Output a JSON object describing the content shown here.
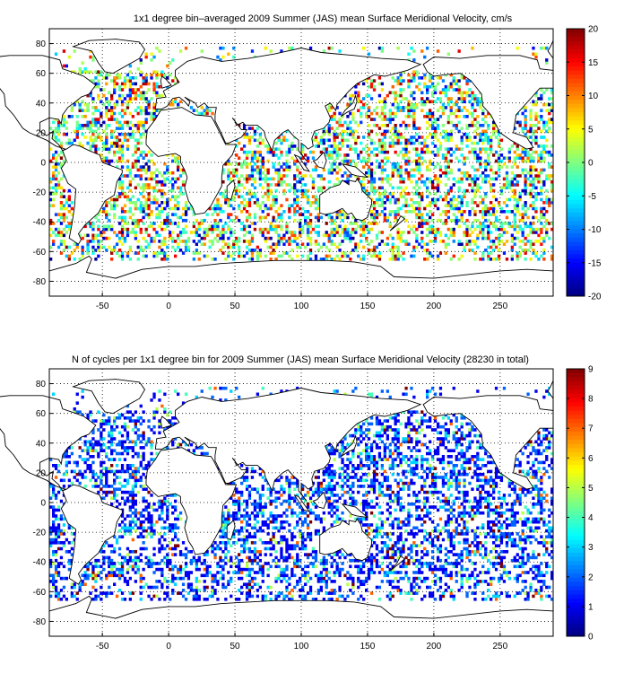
{
  "chart_data": [
    {
      "type": "heatmap",
      "title": "1x1 degree bin–averaged 2009 Summer (JAS) mean Surface Meridional Velocity, cm/s",
      "xlim": [
        -90,
        290
      ],
      "ylim": [
        -90,
        90
      ],
      "x_ticks": [
        "-50",
        "0",
        "50",
        "100",
        "150",
        "200",
        "250"
      ],
      "y_ticks": [
        "80",
        "60",
        "40",
        "20",
        "0",
        "-20",
        "-40",
        "-60",
        "-80"
      ],
      "grid": true,
      "colorbar": {
        "range": [
          -20,
          20
        ],
        "colormap": "jet",
        "ticks": [
          "20",
          "15",
          "10",
          "5",
          "0",
          "-5",
          "-10",
          "-15",
          "-20"
        ]
      },
      "pixel_value_distribution": {
        "green": 0.55,
        "cyan": 0.12,
        "yellow": 0.12,
        "red": 0.07,
        "blue": 0.06,
        "dark_red": 0.04,
        "dark_blue": 0.04
      }
    },
    {
      "type": "heatmap",
      "title": "N of cycles per 1x1 degree bin for 2009 Summer (JAS) mean Surface Meridional Velocity (28230 in total)",
      "xlim": [
        -90,
        290
      ],
      "ylim": [
        -90,
        90
      ],
      "x_ticks": [
        "-50",
        "0",
        "50",
        "100",
        "150",
        "200",
        "250"
      ],
      "y_ticks": [
        "80",
        "60",
        "40",
        "20",
        "0",
        "-20",
        "-40",
        "-60",
        "-80"
      ],
      "grid": true,
      "colorbar": {
        "range": [
          0,
          9
        ],
        "colormap": "jet",
        "ticks": [
          "9",
          "8",
          "7",
          "6",
          "5",
          "4",
          "3",
          "2",
          "1",
          "0"
        ]
      },
      "pixel_value_distribution": {
        "blue_1": 0.42,
        "blue_2": 0.28,
        "cyan_3_4": 0.18,
        "yellow_5_6": 0.06,
        "red_7_9": 0.06
      }
    }
  ]
}
